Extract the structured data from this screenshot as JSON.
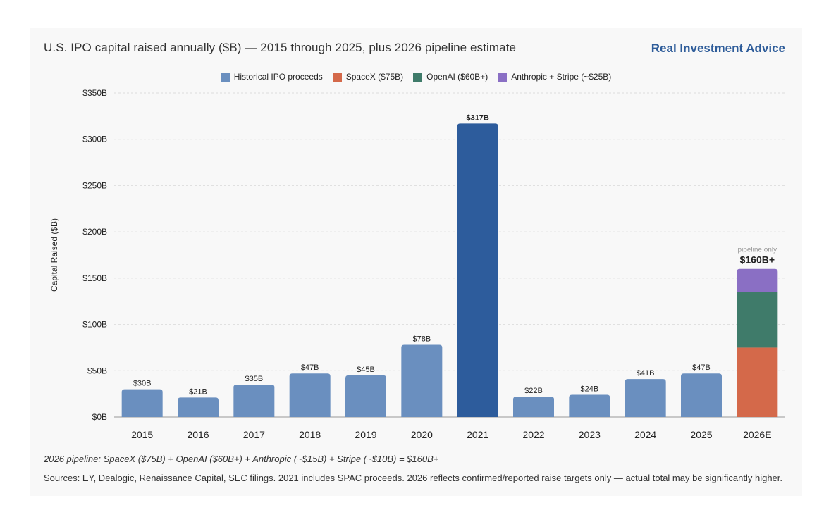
{
  "header": {
    "title": "U.S. IPO capital raised annually ($B) — 2015 through 2025, plus 2026 pipeline estimate",
    "brand": "Real Investment Advice"
  },
  "legend": [
    {
      "label": "Historical IPO proceeds",
      "color": "#6a8fbf"
    },
    {
      "label": "SpaceX ($75B)",
      "color": "#d4694a"
    },
    {
      "label": "OpenAI ($60B+)",
      "color": "#3f7b6a"
    },
    {
      "label": "Anthropic + Stripe (~$25B)",
      "color": "#8a6fc4"
    }
  ],
  "chart_data": {
    "type": "bar",
    "title": "U.S. IPO capital raised annually ($B) — 2015 through 2025, plus 2026 pipeline estimate",
    "ylabel": "Capital Raised ($B)",
    "xlabel": "",
    "ylim": [
      0,
      350
    ],
    "yticks": [
      0,
      50,
      100,
      150,
      200,
      250,
      300,
      350
    ],
    "ytick_labels": [
      "$0B",
      "$50B",
      "$100B",
      "$150B",
      "$200B",
      "$250B",
      "$300B",
      "$350B"
    ],
    "grid": true,
    "legend_position": "top-center",
    "categories": [
      "2015",
      "2016",
      "2017",
      "2018",
      "2019",
      "2020",
      "2021",
      "2022",
      "2023",
      "2024",
      "2025",
      "2026E"
    ],
    "series": [
      {
        "name": "Historical IPO proceeds",
        "values": [
          30,
          21,
          35,
          47,
          45,
          78,
          317,
          22,
          24,
          41,
          47,
          null
        ]
      },
      {
        "name": "SpaceX ($75B)",
        "values": [
          null,
          null,
          null,
          null,
          null,
          null,
          null,
          null,
          null,
          null,
          null,
          75
        ]
      },
      {
        "name": "OpenAI ($60B+)",
        "values": [
          null,
          null,
          null,
          null,
          null,
          null,
          null,
          null,
          null,
          null,
          null,
          60
        ]
      },
      {
        "name": "Anthropic + Stripe (~$25B)",
        "values": [
          null,
          null,
          null,
          null,
          null,
          null,
          null,
          null,
          null,
          null,
          null,
          25
        ]
      }
    ],
    "value_labels": [
      "$30B",
      "$21B",
      "$35B",
      "$47B",
      "$45B",
      "$78B",
      "$317B",
      "$22B",
      "$24B",
      "$41B",
      "$47B",
      "$160B+"
    ],
    "annotations": [
      {
        "category": "2026E",
        "text": "pipeline only"
      }
    ],
    "colors": {
      "historical": "#6a8fbf",
      "highlight": "#2d5c9c",
      "spacex": "#d4694a",
      "openai": "#3f7b6a",
      "anthropic": "#8a6fc4"
    }
  },
  "footnotes": {
    "pipeline": "2026 pipeline: SpaceX ($75B) + OpenAI ($60B+) + Anthropic (~$15B) + Stripe (~$10B) = $160B+",
    "sources": "Sources: EY, Dealogic, Renaissance Capital, SEC filings. 2021 includes SPAC proceeds. 2026 reflects confirmed/reported raise targets only — actual total may be significantly higher."
  }
}
